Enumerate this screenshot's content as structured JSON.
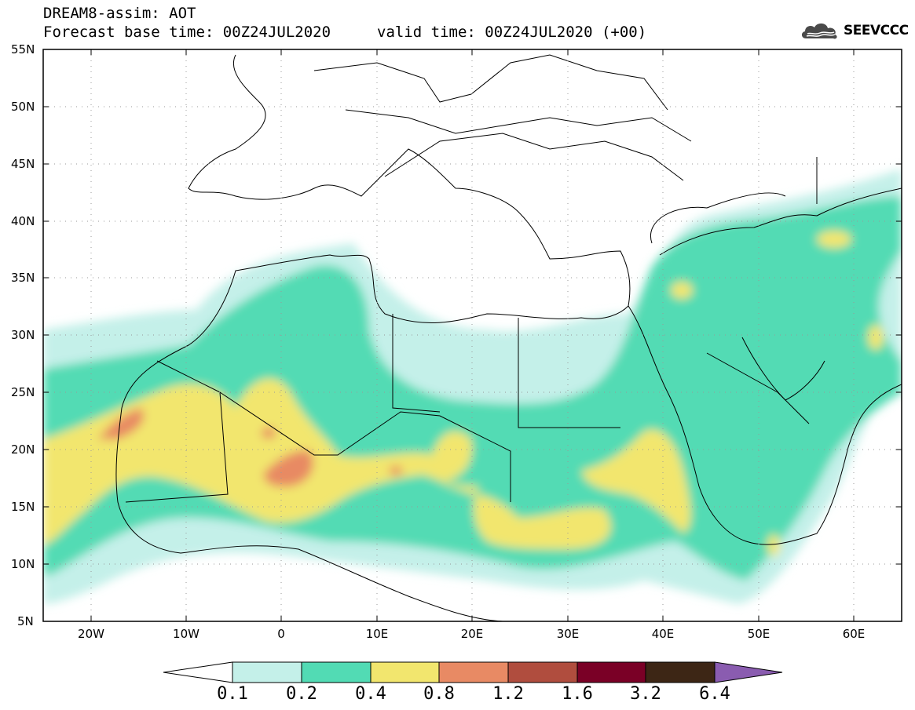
{
  "header": {
    "title": "DREAM8-assim: AOT",
    "base_time": "Forecast base time: 00Z24JUL2020",
    "valid_time": "valid time: 00Z24JUL2020 (+00)"
  },
  "logo": {
    "text": "SEEVCCC",
    "icon": "cloud-icon"
  },
  "map": {
    "lat_labels": [
      "55N",
      "50N",
      "45N",
      "40N",
      "35N",
      "30N",
      "25N",
      "20N",
      "15N",
      "10N",
      "5N"
    ],
    "lon_labels": [
      "20W",
      "10W",
      "0",
      "10E",
      "20E",
      "30E",
      "40E",
      "50E",
      "60E"
    ],
    "lon_range": [
      -25,
      65
    ],
    "lat_range": [
      5,
      55
    ]
  },
  "colorbar": {
    "labels": [
      "0.1",
      "0.2",
      "0.4",
      "0.8",
      "1.2",
      "1.6",
      "3.2",
      "6.4"
    ],
    "colors": [
      "#ffffff",
      "#c4f0e9",
      "#52dbb4",
      "#f2e66e",
      "#e88a64",
      "#b04d3e",
      "#7a0026",
      "#3d2615",
      "#8a5cb0"
    ]
  }
}
